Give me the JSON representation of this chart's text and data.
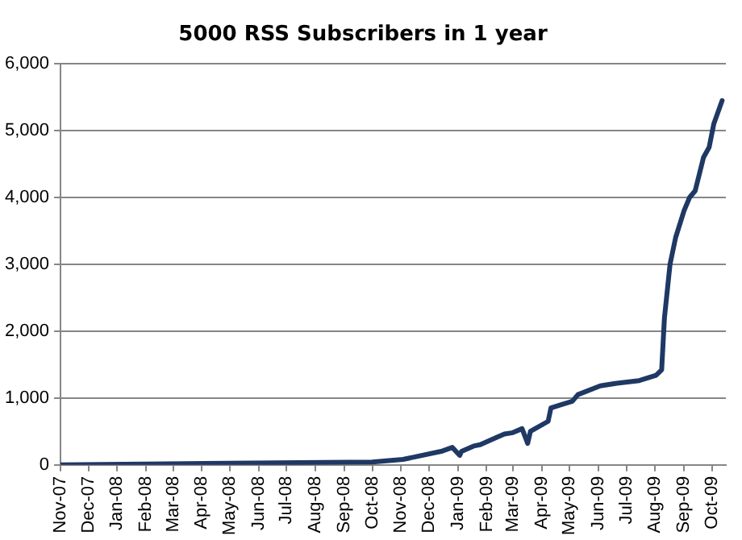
{
  "chart_data": {
    "type": "line",
    "title": "5000 RSS Subscribers in 1 year",
    "x": [
      "2007-11-01",
      "2008-02-01",
      "2008-06-20",
      "2008-10-01",
      "2008-11-03",
      "2008-12-14",
      "2008-12-26",
      "2009-01-03",
      "2009-01-05",
      "2009-01-18",
      "2009-01-25",
      "2009-02-10",
      "2009-02-20",
      "2009-03-01",
      "2009-03-11",
      "2009-03-17",
      "2009-03-20",
      "2009-04-08",
      "2009-04-11",
      "2009-04-22",
      "2009-05-04",
      "2009-05-10",
      "2009-06-03",
      "2009-06-21",
      "2009-07-15",
      "2009-08-02",
      "2009-08-08",
      "2009-08-11",
      "2009-08-17",
      "2009-08-23",
      "2009-09-01",
      "2009-09-07",
      "2009-09-13",
      "2009-09-22",
      "2009-09-28",
      "2009-10-03",
      "2009-10-12"
    ],
    "series": [
      {
        "color": "#1f3864",
        "values": [
          0,
          10,
          30,
          40,
          80,
          200,
          260,
          140,
          200,
          280,
          300,
          400,
          460,
          480,
          540,
          320,
          500,
          650,
          850,
          900,
          950,
          1050,
          1180,
          1220,
          1260,
          1340,
          1420,
          2200,
          3000,
          3400,
          3800,
          4000,
          4100,
          4600,
          4750,
          5100,
          5450
        ]
      }
    ],
    "xlim": [
      "2007-11-01",
      "2009-10-16"
    ],
    "xticks": [
      {
        "value": "2007-11-01",
        "label": "Nov-07"
      },
      {
        "value": "2007-12-01",
        "label": "Dec-07"
      },
      {
        "value": "2008-01-01",
        "label": "Jan-08"
      },
      {
        "value": "2008-02-01",
        "label": "Feb-08"
      },
      {
        "value": "2008-03-01",
        "label": "Mar-08"
      },
      {
        "value": "2008-04-01",
        "label": "Apr-08"
      },
      {
        "value": "2008-05-01",
        "label": "May-08"
      },
      {
        "value": "2008-06-01",
        "label": "Jun-08"
      },
      {
        "value": "2008-07-01",
        "label": "Jul-08"
      },
      {
        "value": "2008-08-01",
        "label": "Aug-08"
      },
      {
        "value": "2008-09-01",
        "label": "Sep-08"
      },
      {
        "value": "2008-10-01",
        "label": "Oct-08"
      },
      {
        "value": "2008-11-01",
        "label": "Nov-08"
      },
      {
        "value": "2008-12-01",
        "label": "Dec-08"
      },
      {
        "value": "2009-01-01",
        "label": "Jan-09"
      },
      {
        "value": "2009-02-01",
        "label": "Feb-09"
      },
      {
        "value": "2009-03-01",
        "label": "Mar-09"
      },
      {
        "value": "2009-04-01",
        "label": "Apr-09"
      },
      {
        "value": "2009-05-01",
        "label": "May-09"
      },
      {
        "value": "2009-06-01",
        "label": "Jun-09"
      },
      {
        "value": "2009-07-01",
        "label": "Jul-09"
      },
      {
        "value": "2009-08-01",
        "label": "Aug-09"
      },
      {
        "value": "2009-09-01",
        "label": "Sep-09"
      },
      {
        "value": "2009-10-01",
        "label": "Oct-09"
      }
    ],
    "ylim": [
      0,
      6000
    ],
    "yticks": [
      0,
      {
        "value": 1000,
        "label": "1,000"
      },
      {
        "value": 2000,
        "label": "2,000"
      },
      {
        "value": 3000,
        "label": "3,000"
      },
      {
        "value": 4000,
        "label": "4,000"
      },
      {
        "value": 5000,
        "label": "5,000"
      },
      {
        "value": 6000,
        "label": "6,000"
      }
    ],
    "grid": "y",
    "legend": false,
    "marker": "none",
    "line_style": "solid"
  }
}
